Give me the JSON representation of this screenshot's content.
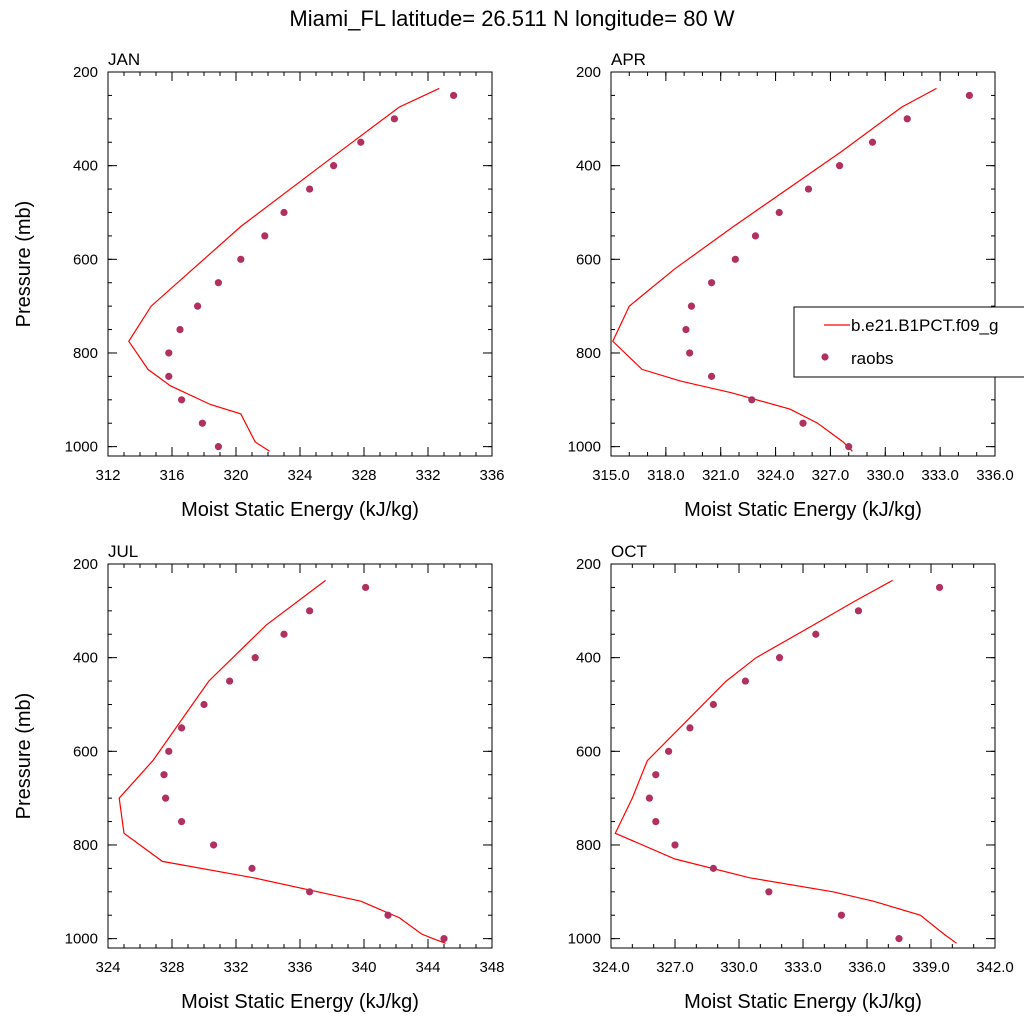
{
  "title": "Miami_FL  latitude= 26.511 N longitude= 80 W",
  "colors": {
    "model_line": "#ff0000",
    "obs_marker": "#b03060",
    "frame": "#000000"
  },
  "legend": {
    "model_label": "b.e21.B1PCT.f09_g",
    "obs_label": "raobs",
    "placement": "right, APR panel"
  },
  "chart_data": [
    {
      "type": "line",
      "panel": "JAN",
      "xlabel": "Moist Static Energy (kJ/kg)",
      "ylabel": "Pressure (mb)",
      "xlim": [
        312,
        336
      ],
      "ylim": [
        1020,
        200
      ],
      "x_ticks": [
        312,
        316,
        320,
        324,
        328,
        332,
        336
      ],
      "x_tick_labels": [
        "312",
        "316",
        "320",
        "324",
        "328",
        "332",
        "336"
      ],
      "x_minor_step": 1,
      "y_ticks": [
        200,
        400,
        600,
        800,
        1000
      ],
      "y_minor_step": 50,
      "series": [
        {
          "name": "b.e21.B1PCT.f09_g",
          "kind": "line",
          "x": [
            332.7,
            330.2,
            326.1,
            320.3,
            314.7,
            313.3,
            314.5,
            315.9,
            318.4,
            320.3,
            321.2,
            322.1
          ],
          "y": [
            235,
            275,
            380,
            530,
            700,
            775,
            835,
            870,
            910,
            930,
            990,
            1010
          ]
        },
        {
          "name": "raobs",
          "kind": "scatter",
          "x": [
            333.6,
            329.9,
            327.8,
            326.1,
            324.6,
            323.0,
            321.8,
            320.3,
            318.9,
            317.6,
            316.5,
            315.8,
            315.8,
            316.6,
            317.9,
            318.9
          ],
          "y": [
            250,
            300,
            350,
            400,
            450,
            500,
            550,
            600,
            650,
            700,
            750,
            800,
            850,
            900,
            950,
            1000
          ]
        }
      ]
    },
    {
      "type": "line",
      "panel": "APR",
      "xlabel": "Moist Static Energy (kJ/kg)",
      "ylabel": "",
      "xlim": [
        315,
        336
      ],
      "ylim": [
        1020,
        200
      ],
      "x_ticks": [
        315,
        318,
        321,
        324,
        327,
        330,
        333,
        336
      ],
      "x_tick_labels": [
        "315.0",
        "318.0",
        "321.0",
        "324.0",
        "327.0",
        "330.0",
        "333.0",
        "336.0"
      ],
      "x_minor_step": 1,
      "y_ticks": [
        200,
        400,
        600,
        800,
        1000
      ],
      "y_minor_step": 50,
      "series": [
        {
          "name": "b.e21.B1PCT.f09_g",
          "kind": "line",
          "x": [
            332.8,
            330.9,
            327.6,
            321.7,
            318.5,
            316.0,
            315.1,
            316.7,
            318.8,
            321.6,
            324.8,
            326.3,
            327.0,
            327.7,
            328.2
          ],
          "y": [
            235,
            275,
            370,
            530,
            620,
            700,
            775,
            835,
            860,
            885,
            920,
            950,
            970,
            990,
            1010
          ]
        },
        {
          "name": "raobs",
          "kind": "scatter",
          "x": [
            334.6,
            331.2,
            329.3,
            327.5,
            325.8,
            324.2,
            322.9,
            321.8,
            320.5,
            319.4,
            319.1,
            319.3,
            320.5,
            322.7,
            325.5,
            328.0
          ],
          "y": [
            250,
            300,
            350,
            400,
            450,
            500,
            550,
            600,
            650,
            700,
            750,
            800,
            850,
            900,
            950,
            1000
          ]
        }
      ]
    },
    {
      "type": "line",
      "panel": "JUL",
      "xlabel": "Moist Static Energy (kJ/kg)",
      "ylabel": "Pressure (mb)",
      "xlim": [
        324,
        348
      ],
      "ylim": [
        1020,
        200
      ],
      "x_ticks": [
        324,
        328,
        332,
        336,
        340,
        344,
        348
      ],
      "x_tick_labels": [
        "324",
        "328",
        "332",
        "336",
        "340",
        "344",
        "348"
      ],
      "x_minor_step": 1,
      "y_ticks": [
        200,
        400,
        600,
        800,
        1000
      ],
      "y_minor_step": 50,
      "series": [
        {
          "name": "b.e21.B1PCT.f09_g",
          "kind": "line",
          "x": [
            337.6,
            333.9,
            330.3,
            326.8,
            324.7,
            325.0,
            327.4,
            333.1,
            339.8,
            341.5,
            342.2,
            343.6,
            344.3,
            345.1
          ],
          "y": [
            235,
            330,
            450,
            620,
            700,
            775,
            835,
            870,
            920,
            945,
            955,
            990,
            1000,
            1010
          ]
        },
        {
          "name": "raobs",
          "kind": "scatter",
          "x": [
            340.1,
            336.6,
            335.0,
            333.2,
            331.6,
            330.0,
            328.6,
            327.8,
            327.5,
            327.6,
            328.6,
            330.6,
            333.0,
            336.6,
            341.5,
            345.0
          ],
          "y": [
            250,
            300,
            350,
            400,
            450,
            500,
            550,
            600,
            650,
            700,
            750,
            800,
            850,
            900,
            950,
            1000
          ]
        }
      ]
    },
    {
      "type": "line",
      "panel": "OCT",
      "xlabel": "Moist Static Energy (kJ/kg)",
      "ylabel": "",
      "xlim": [
        324,
        342
      ],
      "ylim": [
        1020,
        200
      ],
      "x_ticks": [
        324,
        327,
        330,
        333,
        336,
        339,
        342
      ],
      "x_tick_labels": [
        "324.0",
        "327.0",
        "330.0",
        "333.0",
        "336.0",
        "339.0",
        "342.0"
      ],
      "x_minor_step": 1,
      "y_ticks": [
        200,
        400,
        600,
        800,
        1000
      ],
      "y_minor_step": 50,
      "series": [
        {
          "name": "b.e21.B1PCT.f09_g",
          "kind": "line",
          "x": [
            337.2,
            335.4,
            333.5,
            330.8,
            329.4,
            325.7,
            325.0,
            324.2,
            327.0,
            330.5,
            334.4,
            336.3,
            338.5,
            339.6,
            340.2
          ],
          "y": [
            235,
            280,
            330,
            400,
            450,
            620,
            700,
            775,
            830,
            870,
            900,
            920,
            950,
            990,
            1010
          ]
        },
        {
          "name": "raobs",
          "kind": "scatter",
          "x": [
            339.4,
            335.6,
            333.6,
            331.9,
            330.3,
            328.8,
            327.7,
            326.7,
            326.1,
            325.8,
            326.1,
            327.0,
            328.8,
            331.4,
            334.8,
            337.5
          ],
          "y": [
            250,
            300,
            350,
            400,
            450,
            500,
            550,
            600,
            650,
            700,
            750,
            800,
            850,
            900,
            950,
            1000
          ]
        }
      ]
    }
  ]
}
